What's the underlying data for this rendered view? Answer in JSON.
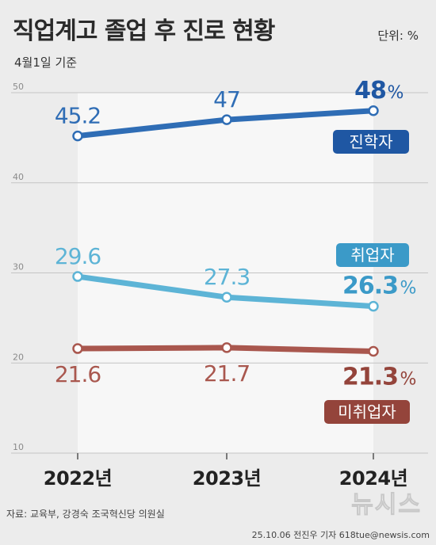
{
  "header": {
    "title": "직업계고 졸업 후 진로 현황",
    "unit": "단위: %",
    "subtitle": "4월1일 기준"
  },
  "footer": {
    "source": "자료: 교육부, 강경숙 조국혁신당 의원실",
    "credit": "25.10.06 전진우 기자 618tue@newsis.com",
    "logo": "뉴시스"
  },
  "chart_data": {
    "type": "line",
    "categories": [
      "2022년",
      "2023년",
      "2024년"
    ],
    "ylim": [
      10,
      50
    ],
    "yticks": [
      "10",
      "20",
      "30",
      "40",
      "50"
    ],
    "grid": true,
    "series": [
      {
        "name": "진학자",
        "values": [
          45.2,
          47,
          48
        ],
        "labels": [
          "45.2",
          "47",
          "48"
        ],
        "color": "#2f6db5",
        "last_color": "#1f57a3"
      },
      {
        "name": "취업자",
        "values": [
          29.6,
          27.3,
          26.3
        ],
        "labels": [
          "29.6",
          "27.3",
          "26.3"
        ],
        "color": "#5db4d6",
        "last_color": "#3b9ac8"
      },
      {
        "name": "미취업자",
        "values": [
          21.6,
          21.7,
          21.3
        ],
        "labels": [
          "21.6",
          "21.7",
          "21.3"
        ],
        "color": "#a9574e",
        "last_color": "#94443b"
      }
    ],
    "percent_suffix": "%"
  }
}
